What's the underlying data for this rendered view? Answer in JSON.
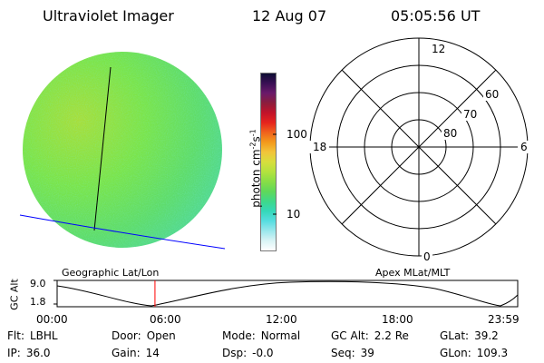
{
  "header": {
    "instrument": "Ultraviolet Imager",
    "date": "12 Aug 07",
    "time": "05:05:56 UT"
  },
  "colorbar": {
    "unit_label": "photon cm",
    "unit_exp1": "-2",
    "unit_s": "s",
    "unit_exp2": "-1",
    "tick_high": "100",
    "tick_low": "10",
    "colors": [
      "#0d0d33",
      "#3a0f55",
      "#6a1a6a",
      "#8c1d3c",
      "#c2132a",
      "#e6241e",
      "#f0621d",
      "#f39a1c",
      "#f2c43a",
      "#d7de3d",
      "#b3e23e",
      "#88de46",
      "#5fd85a",
      "#3fd889",
      "#35d8b9",
      "#56dde0",
      "#9ae8ec",
      "#d8f3f5",
      "#ffffff"
    ]
  },
  "polar_plot": {
    "mlt_top": "12",
    "mlt_left": "18",
    "mlt_right": "6",
    "mlt_bottom": "0",
    "lat_labels": [
      "60",
      "70",
      "80"
    ]
  },
  "image_panel": {
    "disk_color": "#74e24c",
    "track_color": "#0000ff"
  },
  "timeline": {
    "left_title": "Geographic Lat/Lon",
    "right_title": "Apex MLat/MLT",
    "axis_label": "GC Alt",
    "y_top": "9.0",
    "y_bottom": "1.8",
    "x_ticks": [
      "00:00",
      "06:00",
      "12:00",
      "18:00",
      "23:59"
    ],
    "marker_time": "05:05:56",
    "marker_color": "#ff0000"
  },
  "status": {
    "rows": [
      [
        {
          "label": "Flt:",
          "value": "LBHL"
        },
        {
          "label": "Door:",
          "value": "Open"
        },
        {
          "label": "Mode:",
          "value": "Normal"
        },
        {
          "label": "GC Alt:",
          "value": "2.2 Re"
        },
        {
          "label": "GLat:",
          "value": "39.2"
        }
      ],
      [
        {
          "label": "IP:",
          "value": "36.0"
        },
        {
          "label": "Gain:",
          "value": "14"
        },
        {
          "label": "Dsp:",
          "value": "-0.0"
        },
        {
          "label": "Seq:",
          "value": "39"
        },
        {
          "label": "GLon:",
          "value": "109.3"
        }
      ]
    ]
  }
}
